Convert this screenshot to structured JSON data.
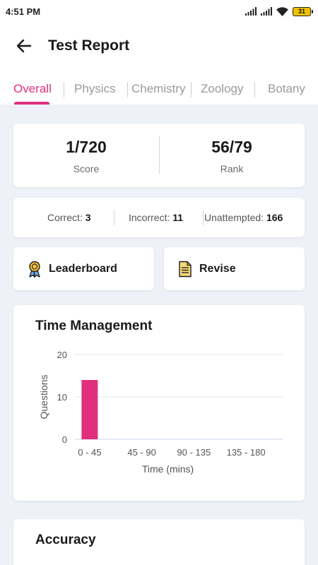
{
  "status_bar": {
    "time": "4:51 PM",
    "battery": "31",
    "icons": [
      "signal-icon",
      "signal-icon",
      "wifi-icon",
      "battery-icon"
    ]
  },
  "header": {
    "title": "Test Report",
    "back_icon": "arrow-left-icon"
  },
  "tabs": [
    {
      "label": "Overall",
      "active": true
    },
    {
      "label": "Physics",
      "active": false
    },
    {
      "label": "Chemistry",
      "active": false
    },
    {
      "label": "Zoology",
      "active": false
    },
    {
      "label": "Botany",
      "active": false
    }
  ],
  "summary": {
    "score": {
      "value": "1/720",
      "label": "Score"
    },
    "rank": {
      "value": "56/79",
      "label": "Rank"
    }
  },
  "answers": {
    "correct": {
      "label": "Correct:",
      "value": "3"
    },
    "incorrect": {
      "label": "Incorrect:",
      "value": "11"
    },
    "unattempted": {
      "label": "Unattempted:",
      "value": "166"
    }
  },
  "actions": {
    "leaderboard": {
      "label": "Leaderboard",
      "icon": "medal-icon"
    },
    "revise": {
      "label": "Revise",
      "icon": "document-icon"
    }
  },
  "time_management": {
    "title": "Time Management"
  },
  "accuracy": {
    "title": "Accuracy"
  },
  "colors": {
    "accent": "#e0307d",
    "background": "#eef1f8",
    "axis": "#c7d3ec"
  },
  "chart_data": {
    "type": "bar",
    "title": "",
    "xlabel": "Time (mins)",
    "ylabel": "Questions",
    "categories": [
      "0 - 45",
      "45 - 90",
      "90 - 135",
      "135 - 180"
    ],
    "values": [
      14,
      0,
      0,
      0
    ],
    "ylim": [
      0,
      20
    ],
    "yticks": [
      0,
      10,
      20
    ],
    "grid": true,
    "legend": "none"
  }
}
